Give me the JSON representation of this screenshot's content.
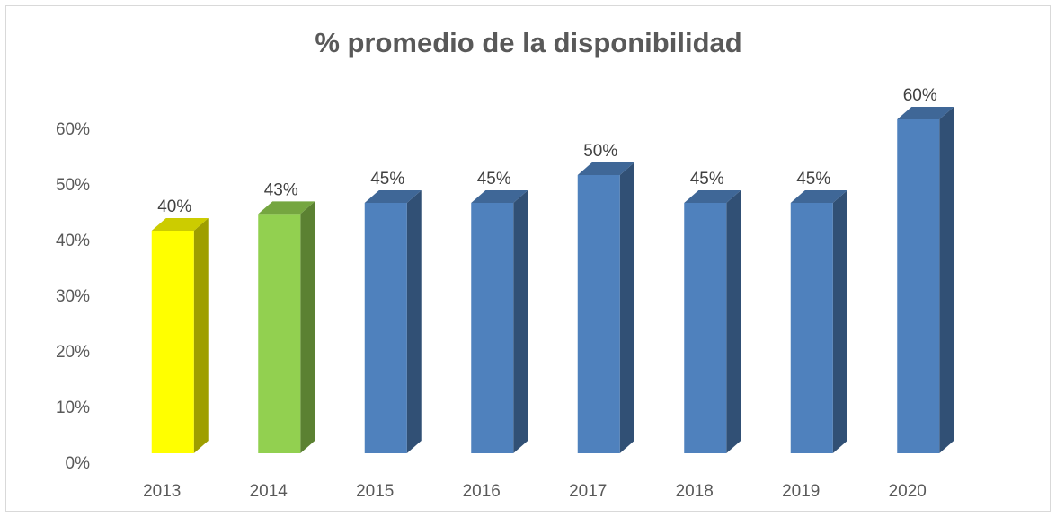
{
  "chart_data": {
    "type": "bar",
    "title": "% promedio de la disponibilidad",
    "categories": [
      "2013",
      "2014",
      "2015",
      "2016",
      "2017",
      "2018",
      "2019",
      "2020"
    ],
    "values": [
      40,
      43,
      45,
      45,
      50,
      45,
      45,
      60
    ],
    "value_labels": [
      "40%",
      "43%",
      "45%",
      "45%",
      "50%",
      "45%",
      "45%",
      "60%"
    ],
    "colors": [
      "#ffff00",
      "#92d050",
      "#4f81bd",
      "#4f81bd",
      "#4f81bd",
      "#4f81bd",
      "#4f81bd",
      "#4f81bd"
    ],
    "ylim": [
      0,
      60
    ],
    "yticks": [
      {
        "value": 0,
        "label": "0%"
      },
      {
        "value": 10,
        "label": "10%"
      },
      {
        "value": 20,
        "label": "20%"
      },
      {
        "value": 30,
        "label": "30%"
      },
      {
        "value": 40,
        "label": "40%"
      },
      {
        "value": 50,
        "label": "50%"
      },
      {
        "value": 60,
        "label": "60%"
      }
    ],
    "grid": false
  }
}
